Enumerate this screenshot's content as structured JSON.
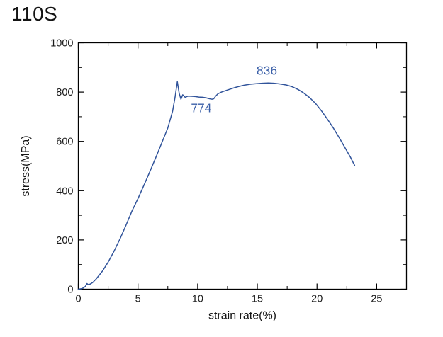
{
  "page": {
    "title": "110S"
  },
  "chart_data": {
    "type": "line",
    "title": "110S",
    "xlabel": "strain rate(%)",
    "ylabel": "stress(MPa)",
    "xlim": [
      0,
      27.5
    ],
    "ylim": [
      0,
      1000
    ],
    "x_major_ticks": [
      0,
      5,
      10,
      15,
      20,
      25
    ],
    "x_minor_ticks": [
      2.5,
      7.5,
      12.5,
      17.5,
      22.5
    ],
    "y_major_ticks": [
      0,
      200,
      400,
      600,
      800,
      1000
    ],
    "y_minor_ticks": [
      100,
      300,
      500,
      700,
      900
    ],
    "grid": false,
    "legend": "none",
    "frame": "closed box, inward ticks on all four sides",
    "axis_color": "#000000",
    "tick_label_color": "#1a1a1a",
    "background": "#ffffff",
    "series": [
      {
        "name": "110S stress-strain curve",
        "color": "#31549b",
        "points": [
          [
            0,
            0
          ],
          [
            0.25,
            2
          ],
          [
            0.45,
            6
          ],
          [
            0.6,
            12
          ],
          [
            0.72,
            23
          ],
          [
            0.85,
            18
          ],
          [
            1.0,
            21
          ],
          [
            1.2,
            27
          ],
          [
            1.5,
            42
          ],
          [
            2.0,
            72
          ],
          [
            2.5,
            110
          ],
          [
            3.0,
            155
          ],
          [
            3.5,
            205
          ],
          [
            4.0,
            260
          ],
          [
            4.5,
            318
          ],
          [
            5.0,
            368
          ],
          [
            5.5,
            422
          ],
          [
            6.0,
            478
          ],
          [
            6.5,
            535
          ],
          [
            7.0,
            595
          ],
          [
            7.5,
            655
          ],
          [
            7.9,
            722
          ],
          [
            8.1,
            778
          ],
          [
            8.3,
            842
          ],
          [
            8.45,
            795
          ],
          [
            8.6,
            771
          ],
          [
            8.75,
            789
          ],
          [
            8.95,
            779
          ],
          [
            9.2,
            784
          ],
          [
            9.5,
            783
          ],
          [
            9.8,
            782
          ],
          [
            10.1,
            780
          ],
          [
            10.4,
            779
          ],
          [
            10.7,
            777
          ],
          [
            11.0,
            773
          ],
          [
            11.2,
            771
          ],
          [
            11.35,
            773
          ],
          [
            11.5,
            783
          ],
          [
            11.7,
            793
          ],
          [
            12.0,
            800
          ],
          [
            12.4,
            807
          ],
          [
            12.9,
            815
          ],
          [
            13.4,
            822
          ],
          [
            13.9,
            828
          ],
          [
            14.4,
            832
          ],
          [
            14.9,
            834
          ],
          [
            15.4,
            836
          ],
          [
            15.9,
            837
          ],
          [
            16.4,
            836
          ],
          [
            16.9,
            833
          ],
          [
            17.4,
            829
          ],
          [
            17.9,
            822
          ],
          [
            18.4,
            811
          ],
          [
            18.9,
            796
          ],
          [
            19.4,
            777
          ],
          [
            19.9,
            753
          ],
          [
            20.4,
            722
          ],
          [
            20.9,
            688
          ],
          [
            21.4,
            652
          ],
          [
            21.9,
            612
          ],
          [
            22.4,
            570
          ],
          [
            22.8,
            536
          ],
          [
            23.05,
            512
          ],
          [
            23.15,
            503
          ]
        ]
      }
    ],
    "annotations": [
      {
        "label": "836",
        "x": 15.8,
        "y": 888,
        "color": "#3a5fa8"
      },
      {
        "label": "774",
        "x": 10.3,
        "y": 735,
        "color": "#3a5fa8"
      }
    ]
  }
}
